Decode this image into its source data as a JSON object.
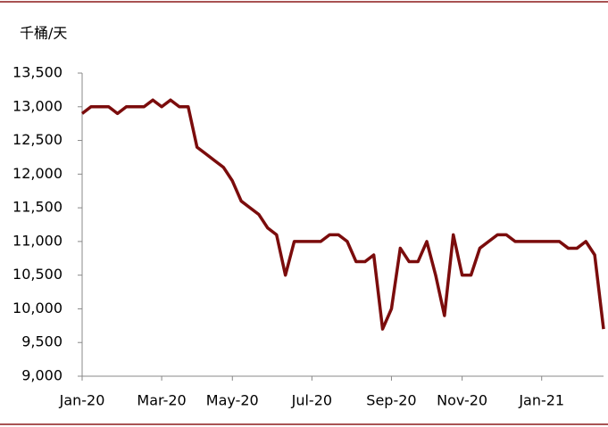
{
  "chart_data": {
    "type": "line",
    "y_label": "千桶/天",
    "categories": [
      "Jan-20",
      null,
      null,
      null,
      null,
      null,
      null,
      null,
      null,
      "Mar-20",
      null,
      null,
      null,
      null,
      null,
      null,
      null,
      "May-20",
      null,
      null,
      null,
      null,
      null,
      null,
      null,
      null,
      "Jul-20",
      null,
      null,
      null,
      null,
      null,
      null,
      null,
      null,
      "Sep-20",
      null,
      null,
      null,
      null,
      null,
      null,
      null,
      "Nov-20",
      null,
      null,
      null,
      null,
      null,
      null,
      null,
      null,
      "Jan-21",
      null,
      null,
      null,
      null,
      null,
      null,
      null
    ],
    "series": [
      {
        "color": "#7b0c0c",
        "values": [
          12900,
          13000,
          13000,
          13000,
          12900,
          13000,
          13000,
          13000,
          13100,
          13000,
          13100,
          13000,
          13000,
          12400,
          12300,
          12200,
          12100,
          11900,
          11600,
          11500,
          11400,
          11200,
          11100,
          10500,
          11000,
          11000,
          11000,
          11000,
          11100,
          11100,
          11000,
          10700,
          10700,
          10800,
          9700,
          10000,
          10900,
          10700,
          10700,
          11000,
          10500,
          9900,
          11100,
          10500,
          10500,
          10900,
          11000,
          11100,
          11100,
          11000,
          11000,
          11000,
          11000,
          11000,
          11000,
          10900,
          10900,
          11000,
          10800,
          9700
        ]
      }
    ],
    "ylim": [
      9000,
      13500
    ],
    "yticks": [
      {
        "value": 9000,
        "label": "9,000"
      },
      {
        "value": 9500,
        "label": "9,500"
      },
      {
        "value": 10000,
        "label": "10,000"
      },
      {
        "value": 10500,
        "label": "10,500"
      },
      {
        "value": 11000,
        "label": "11,000"
      },
      {
        "value": 11500,
        "label": "11,500"
      },
      {
        "value": 12000,
        "label": "12,000"
      },
      {
        "value": 12500,
        "label": "12,500"
      },
      {
        "value": 13000,
        "label": "13,000"
      },
      {
        "value": 13500,
        "label": "13,500"
      }
    ],
    "grid": false
  }
}
